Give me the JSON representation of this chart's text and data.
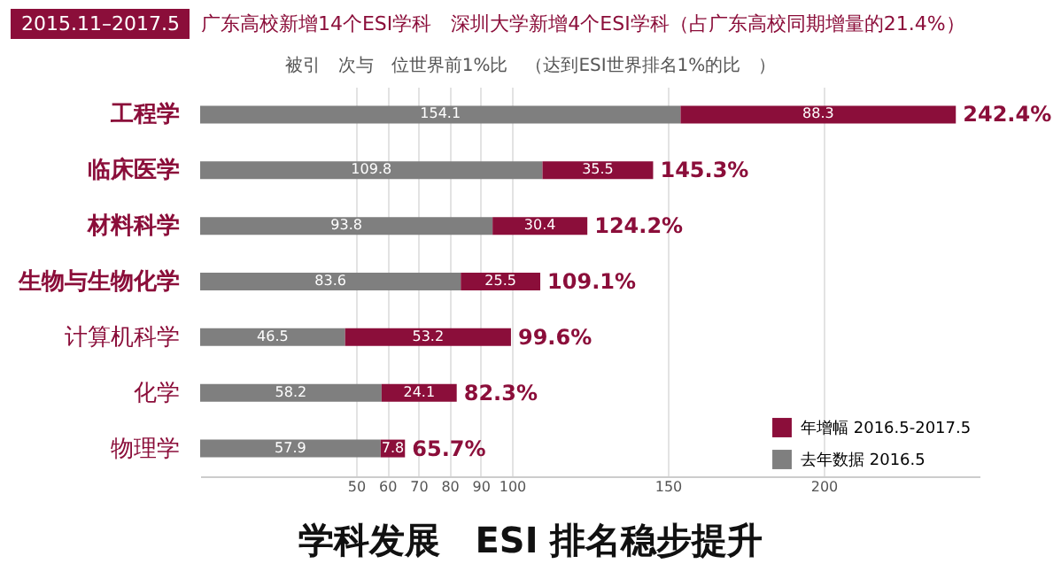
{
  "chart_data": {
    "type": "bar",
    "orientation": "horizontal",
    "stacked": true,
    "title": "2015.11–2017.5",
    "subtitle": "广东高校新增14个ESI学科　深圳大学新增4个ESI学科（占广东高校同期增量的21.4%）",
    "annotations": [
      "被引　次与　位世界前1%比　（达到ESI世界排名1%的比　）",
      "学科发展　ESI 排名稳步提升"
    ],
    "categories": [
      "工程学",
      "临床医学",
      "材料科学",
      "生物与生物化学",
      "计算机科学",
      "化学",
      "物理学"
    ],
    "series": [
      {
        "name": "去年数据 2016.5",
        "color": "#7f7f7f",
        "values": [
          154.1,
          109.8,
          93.8,
          83.6,
          46.5,
          58.2,
          57.9
        ]
      },
      {
        "name": "年增幅 2016.5-2017.5",
        "color": "#8b0e3a",
        "values": [
          88.3,
          35.5,
          30.4,
          25.5,
          53.2,
          24.1,
          7.8
        ]
      }
    ],
    "data_labels": true,
    "totals": [
      "242.4%",
      "145.3%",
      "124.2%",
      "109.1%",
      "99.6%",
      "82.3%",
      "65.7%"
    ],
    "xlim": [
      0,
      250
    ],
    "xticks": [
      50,
      60,
      70,
      80,
      90,
      100,
      150,
      200
    ],
    "grid": "x",
    "legend": "bottom right"
  }
}
